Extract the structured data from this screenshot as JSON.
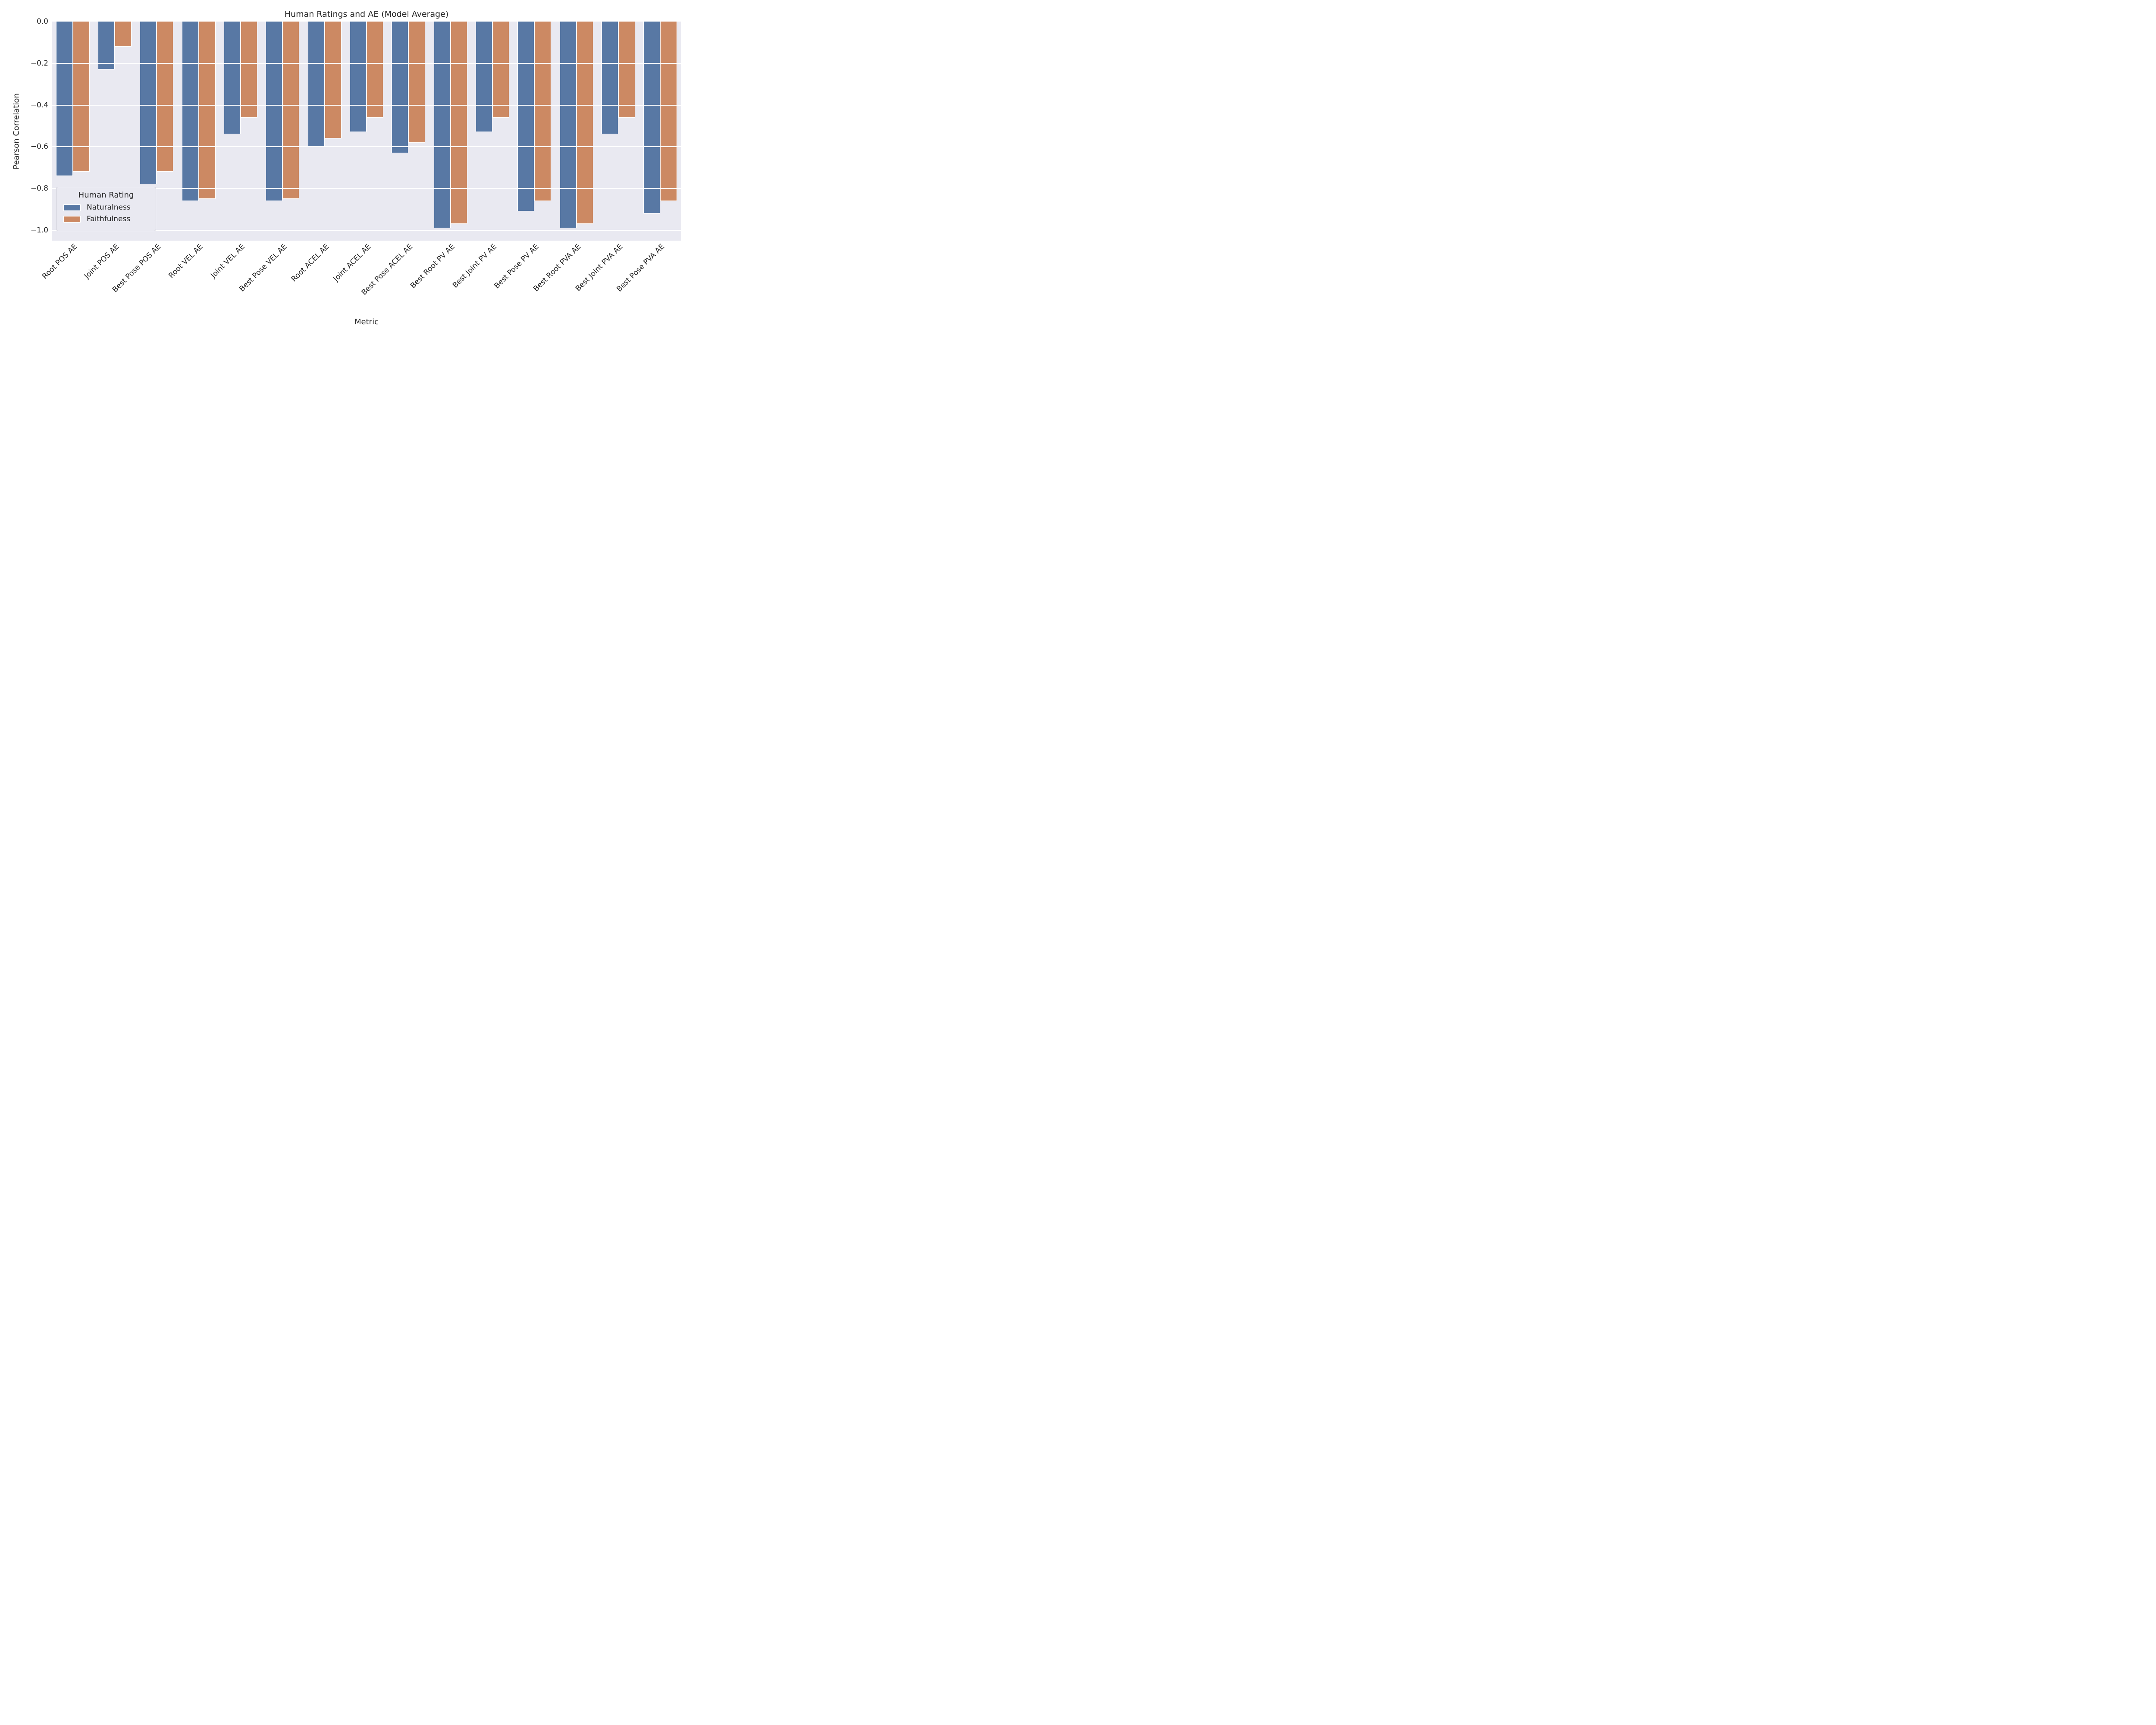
{
  "figure": {
    "title": "Human Ratings and AE (Model Average)"
  },
  "axes": {
    "xlabel": "Metric",
    "ylabel": "Pearson Correlation",
    "ytick_labels": [
      "0.0",
      "−0.2",
      "−0.4",
      "−0.6",
      "−0.8",
      "−1.0"
    ]
  },
  "legend": {
    "title": "Human Rating",
    "entries": [
      {
        "label": "Naturalness",
        "color": "#5878A4"
      },
      {
        "label": "Faithfulness",
        "color": "#CC8963"
      }
    ]
  },
  "colors": {
    "plot_background": "#E9E9F1",
    "gridline": "#FFFFFF",
    "naturalness": "#5878A4",
    "faithfulness": "#CC8963",
    "text": "#262626"
  },
  "chart_data": {
    "type": "bar",
    "title": "Human Ratings and AE (Model Average)",
    "xlabel": "Metric",
    "ylabel": "Pearson Correlation",
    "ylim": [
      -1.05,
      0
    ],
    "yticks": [
      0,
      -0.2,
      -0.4,
      -0.6,
      -0.8,
      -1.0
    ],
    "grid": true,
    "legend_title": "Human Rating",
    "legend_position": "lower left",
    "categories": [
      "Root POS AE",
      "Joint POS AE",
      "Best Pose POS AE",
      "Root VEL AE",
      "Joint VEL AE",
      "Best Pose VEL AE",
      "Root ACEL AE",
      "Joint ACEL AE",
      "Best Pose ACEL AE",
      "Best Root PV AE",
      "Best Joint PV AE",
      "Best Pose PV AE",
      "Best Root PVA AE",
      "Best Joint PVA AE",
      "Best Pose PVA AE"
    ],
    "series": [
      {
        "name": "Naturalness",
        "color": "#5878A4",
        "values": [
          -0.74,
          -0.23,
          -0.78,
          -0.86,
          -0.54,
          -0.86,
          -0.6,
          -0.53,
          -0.63,
          -0.99,
          -0.53,
          -0.91,
          -0.99,
          -0.54,
          -0.92
        ]
      },
      {
        "name": "Faithfulness",
        "color": "#CC8963",
        "values": [
          -0.72,
          -0.12,
          -0.72,
          -0.85,
          -0.46,
          -0.85,
          -0.56,
          -0.46,
          -0.58,
          -0.97,
          -0.46,
          -0.86,
          -0.97,
          -0.46,
          -0.86
        ]
      }
    ]
  }
}
